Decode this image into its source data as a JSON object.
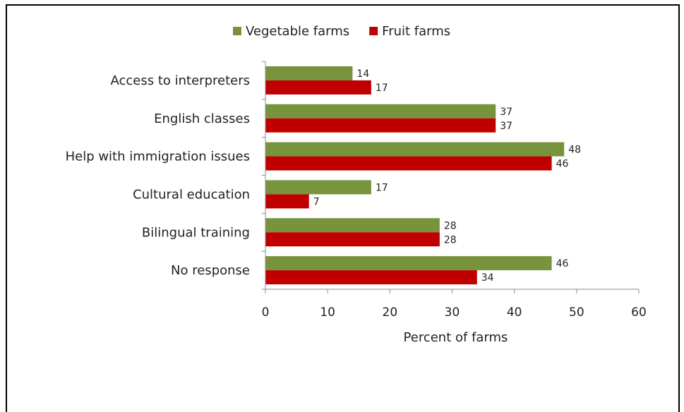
{
  "chart_data": {
    "type": "bar",
    "orientation": "horizontal",
    "categories": [
      "Access to interpreters",
      "English classes",
      "Help with immigration issues",
      "Cultural education",
      "Bilingual training",
      "No response"
    ],
    "series": [
      {
        "name": "Vegetable farms",
        "color": "#77933c",
        "values": [
          14,
          37,
          48,
          17,
          28,
          46
        ]
      },
      {
        "name": "Fruit farms",
        "color": "#c00000",
        "values": [
          17,
          37,
          46,
          7,
          28,
          34
        ]
      }
    ],
    "xlabel": "Percent of farms",
    "xlim": [
      0,
      60
    ],
    "xticks": [
      0,
      10,
      20,
      30,
      40,
      50,
      60
    ],
    "grid": false,
    "legend": "top-center",
    "data_labels": true
  }
}
